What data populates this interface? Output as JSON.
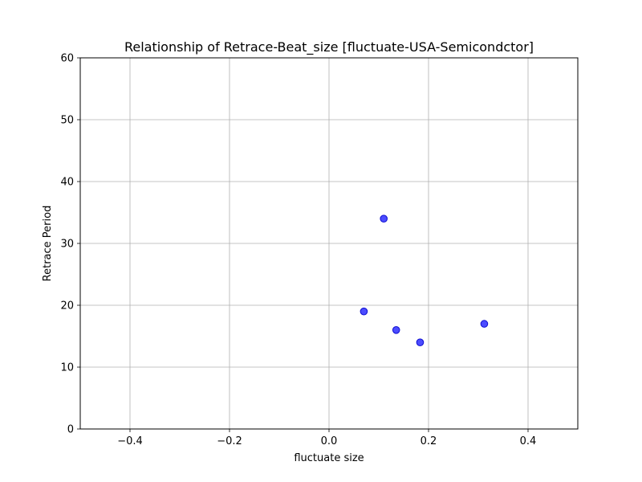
{
  "colors": {
    "grid": "#b0b0b0",
    "axis": "#000000",
    "point_fill": "#0000ff",
    "point_edge": "#0000cc",
    "background": "#ffffff"
  },
  "chart_data": {
    "type": "scatter",
    "title": "Relationship of Retrace-Beat_size [fluctuate-USA-Semicondctor]",
    "xlabel": "fluctuate size",
    "ylabel": "Retrace Period",
    "xlim": [
      -0.5,
      0.5
    ],
    "ylim": [
      0,
      60
    ],
    "grid": true,
    "x_ticks": [
      -0.4,
      -0.2,
      0.0,
      0.2,
      0.4
    ],
    "x_tick_labels": [
      "−0.4",
      "−0.2",
      "0.0",
      "0.2",
      "0.4"
    ],
    "y_ticks": [
      0,
      10,
      20,
      30,
      40,
      50,
      60
    ],
    "y_tick_labels": [
      "0",
      "10",
      "20",
      "30",
      "40",
      "50",
      "60"
    ],
    "points": [
      {
        "x": 0.07,
        "y": 19
      },
      {
        "x": 0.11,
        "y": 34
      },
      {
        "x": 0.135,
        "y": 16
      },
      {
        "x": 0.183,
        "y": 14
      },
      {
        "x": 0.312,
        "y": 17
      }
    ]
  }
}
